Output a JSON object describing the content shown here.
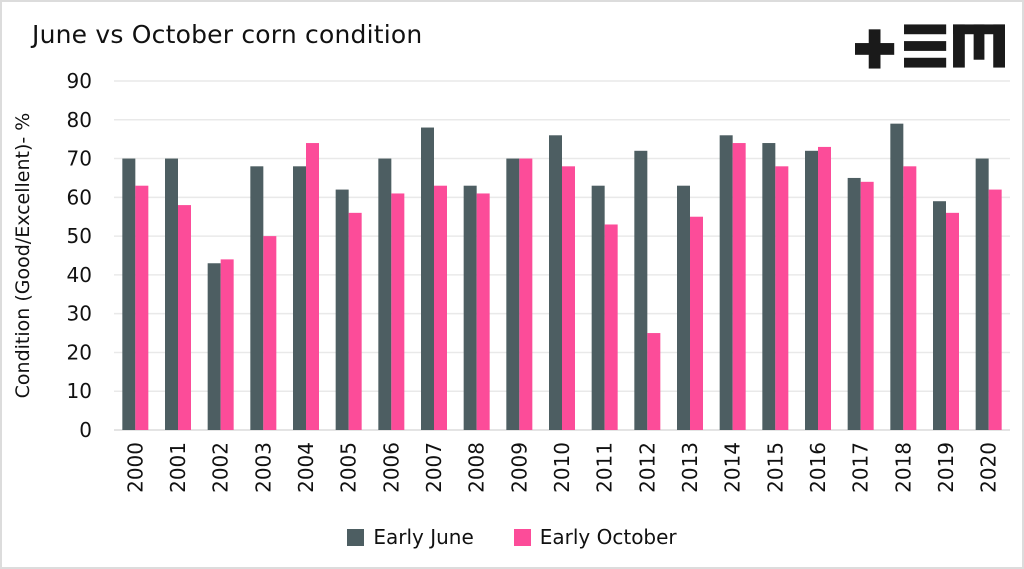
{
  "header": {
    "title": "June vs October corn condition",
    "logo": "plus-triple-bar-M monogram"
  },
  "colors": {
    "june_bar": "#4d5e62",
    "october_bar": "#fc4c99",
    "grid": "#e9e9e9",
    "baseline": "#dcdcdc",
    "text": "#111111",
    "logo": "#1a1a1a",
    "border": "#dcdcdc"
  },
  "chart_data": {
    "type": "bar",
    "title": "June vs October corn condition",
    "xlabel": "",
    "ylabel": "Condition (Good/Excellent)- %",
    "ylim": [
      0,
      90
    ],
    "ytick_step": 10,
    "grid": true,
    "legend_position": "bottom",
    "x_tick_rotation": -90,
    "categories": [
      "2000",
      "2001",
      "2002",
      "2003",
      "2004",
      "2005",
      "2006",
      "2007",
      "2008",
      "2009",
      "2010",
      "2011",
      "2012",
      "2013",
      "2014",
      "2015",
      "2016",
      "2017",
      "2018",
      "2019",
      "2020"
    ],
    "series": [
      {
        "name": "Early June",
        "color": "#4d5e62",
        "values": [
          70,
          70,
          43,
          68,
          68,
          62,
          70,
          78,
          63,
          70,
          76,
          63,
          72,
          63,
          76,
          74,
          72,
          65,
          79,
          59,
          70
        ]
      },
      {
        "name": "Early October",
        "color": "#fc4c99",
        "values": [
          63,
          58,
          44,
          50,
          74,
          56,
          61,
          63,
          61,
          70,
          68,
          53,
          25,
          55,
          74,
          68,
          73,
          64,
          68,
          56,
          62
        ]
      }
    ]
  }
}
